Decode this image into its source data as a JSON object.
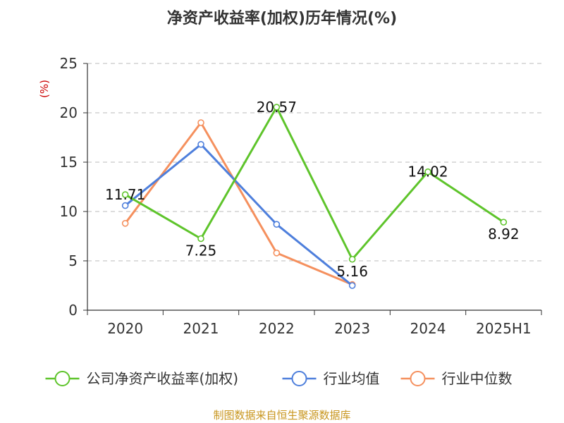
{
  "chart_data": {
    "type": "line",
    "title": "净资产收益率(加权)历年情况(%)",
    "ylabel": "(%)",
    "categories": [
      "2020",
      "2021",
      "2022",
      "2023",
      "2024",
      "2025H1"
    ],
    "ylim": [
      0,
      25
    ],
    "yticks": [
      "0",
      "5",
      "10",
      "15",
      "20",
      "25"
    ],
    "grid": true,
    "legend_position": "bottom",
    "series": [
      {
        "name": "公司净资产收益率(加权)",
        "color": "#5ec42b",
        "values": [
          11.71,
          7.25,
          20.57,
          5.16,
          14.02,
          8.92
        ],
        "labels": [
          "11.71",
          "7.25",
          "20.57",
          "5.16",
          "14.02",
          "8.92"
        ]
      },
      {
        "name": "行业均值",
        "color": "#4e7fdc",
        "values": [
          10.6,
          16.8,
          8.7,
          2.5,
          null,
          null
        ]
      },
      {
        "name": "行业中位数",
        "color": "#f5905e",
        "values": [
          8.8,
          19.0,
          5.8,
          2.6,
          null,
          null
        ]
      }
    ]
  },
  "source_text": "制图数据来自恒生聚源数据库",
  "colors": {
    "axis": "#333333",
    "grid": "#bbbbbb",
    "ylabel": "#cc0000",
    "source": "#c8961e"
  }
}
